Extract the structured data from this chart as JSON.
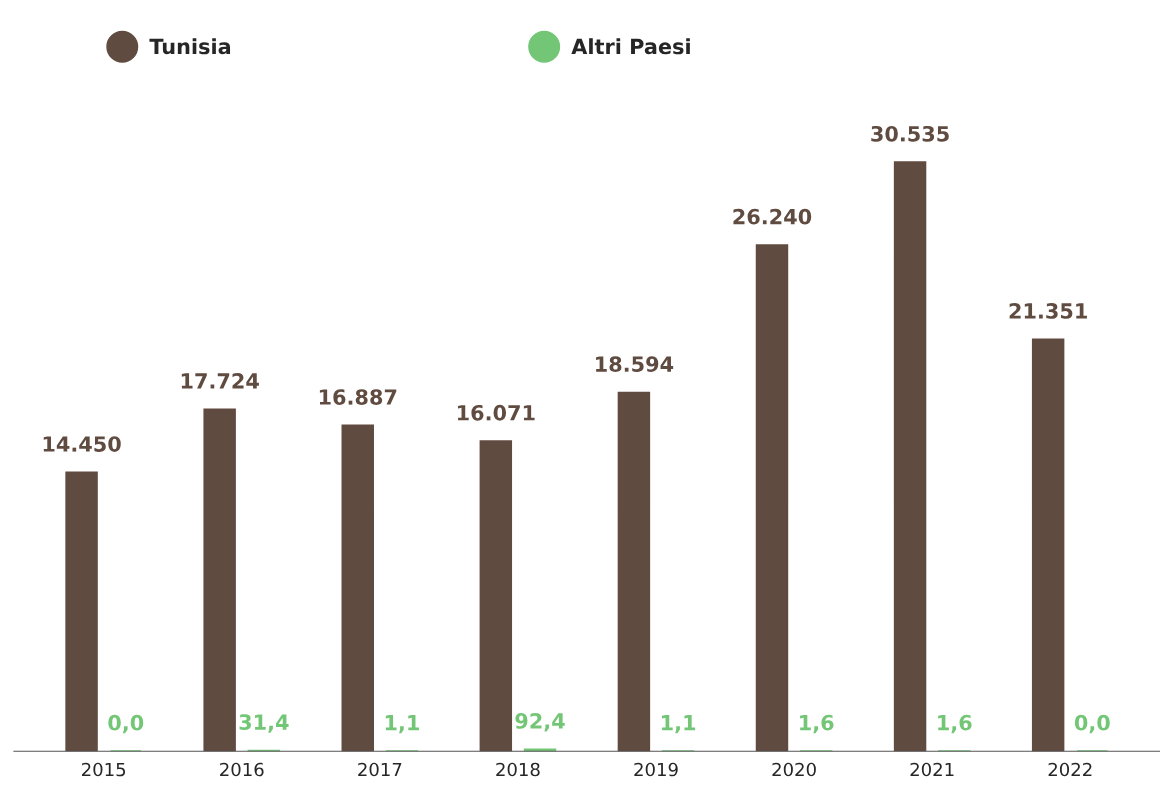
{
  "chart_data": {
    "type": "bar",
    "categories": [
      "2015",
      "2016",
      "2017",
      "2018",
      "2019",
      "2020",
      "2021",
      "2022"
    ],
    "series": [
      {
        "name": "Tunisia",
        "color": "#604b40",
        "values": [
          14450,
          17724,
          16887,
          16071,
          18594,
          26240,
          30535,
          21351
        ],
        "value_labels": [
          "14.450",
          "17.724",
          "16.887",
          "16.071",
          "18.594",
          "26.240",
          "30.535",
          "21.351"
        ]
      },
      {
        "name": "Altri Paesi",
        "color": "#74c677",
        "values": [
          0.0,
          31.4,
          1.1,
          92.4,
          1.1,
          1.6,
          1.6,
          0.0
        ],
        "value_labels": [
          "0,0",
          "31,4",
          "1,1",
          "92,4",
          "1,1",
          "1,6",
          "1,6",
          "0,0"
        ]
      }
    ],
    "legend": "top left",
    "grid": false,
    "tick_labels": "x"
  }
}
